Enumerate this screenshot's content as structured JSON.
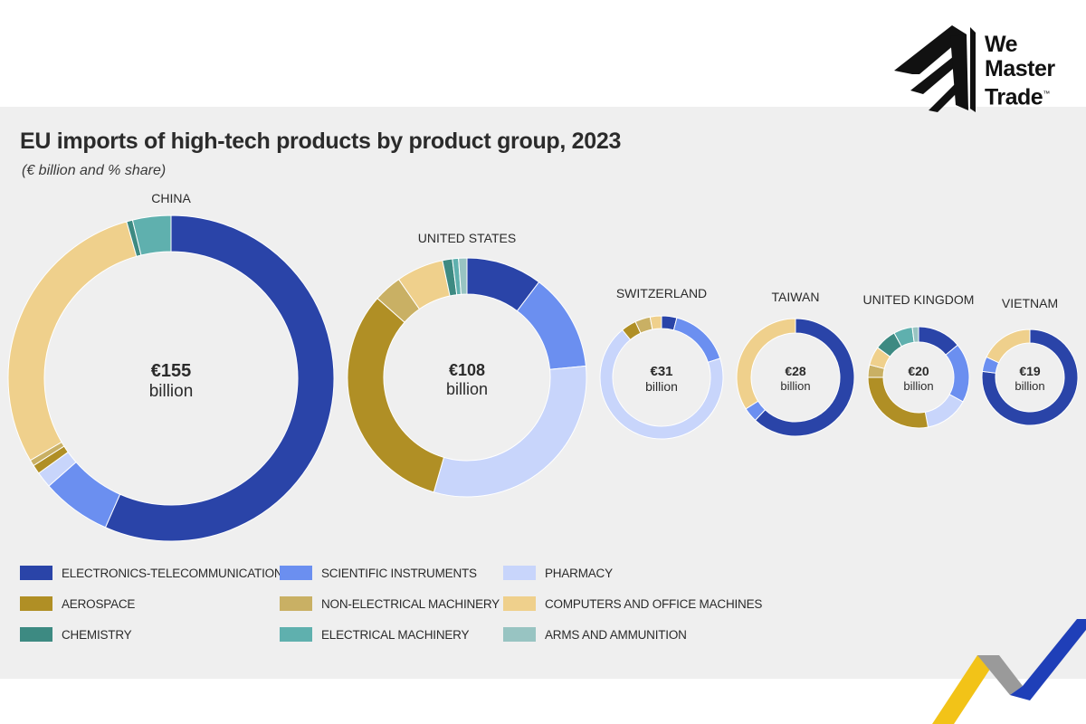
{
  "chart_data": {
    "type": "donut",
    "title": "EU imports of high-tech products by product group, 2023",
    "subtitle": "(€ billion and % share)",
    "categories": [
      "ELECTRONICS-TELECOMMUNICATIONS",
      "SCIENTIFIC INSTRUMENTS",
      "PHARMACY",
      "AEROSPACE",
      "NON-ELECTRICAL MACHINERY",
      "COMPUTERS AND OFFICE MACHINES",
      "CHEMISTRY",
      "ELECTRICAL MACHINERY",
      "ARMS AND AMMUNITION"
    ],
    "colors": [
      "#2a44a8",
      "#6b8ff0",
      "#c8d5fb",
      "#b08f25",
      "#c9b064",
      "#efd08c",
      "#3d8a82",
      "#5fb0ae",
      "#98c4c2"
    ],
    "countries": [
      {
        "name": "CHINA",
        "total": "€155",
        "unit": "billion",
        "shares": [
          0.566,
          0.069,
          0.016,
          0.009,
          0.006,
          0.29,
          0.006,
          0.038,
          0
        ]
      },
      {
        "name": "UNITED STATES",
        "total": "€108",
        "unit": "billion",
        "shares": [
          0.1,
          0.128,
          0.301,
          0.311,
          0.037,
          0.062,
          0.013,
          0.008,
          0.011
        ]
      },
      {
        "name": "SWITZERLAND",
        "total": "€31",
        "unit": "billion",
        "shares": [
          0.04,
          0.16,
          0.69,
          0.04,
          0.04,
          0.03,
          0,
          0,
          0
        ]
      },
      {
        "name": "TAIWAN",
        "total": "€28",
        "unit": "billion",
        "shares": [
          0.62,
          0.04,
          0,
          0,
          0,
          0.34,
          0,
          0,
          0
        ]
      },
      {
        "name": "UNITED KINGDOM",
        "total": "€20",
        "unit": "billion",
        "shares": [
          0.14,
          0.19,
          0.14,
          0.28,
          0.04,
          0.06,
          0.07,
          0.06,
          0.02
        ]
      },
      {
        "name": "VIETNAM",
        "total": "€19",
        "unit": "billion",
        "shares": [
          0.77,
          0.05,
          0,
          0,
          0,
          0.18,
          0,
          0,
          0
        ]
      }
    ]
  },
  "brand": {
    "line1": "We",
    "line2": "Master",
    "line3": "Trade",
    "tm": "™"
  }
}
